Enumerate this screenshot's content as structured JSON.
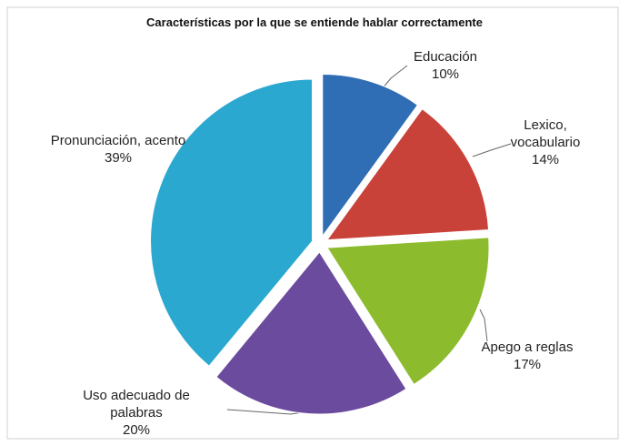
{
  "chart_data": {
    "type": "pie",
    "title": "Características por la que se entiende hablar correctamente",
    "categories": [
      "Educación",
      "Lexico, vocabulario",
      "Apego a reglas",
      "Uso adecuado de palabras",
      "Pronunciación, acento"
    ],
    "values": [
      10,
      14,
      17,
      20,
      39
    ],
    "value_labels": [
      "10%",
      "14%",
      "17%",
      "20%",
      "39%"
    ],
    "colors": [
      "#2f6db5",
      "#c8423a",
      "#8dbb2e",
      "#6b4b9e",
      "#2aa8d0"
    ]
  }
}
